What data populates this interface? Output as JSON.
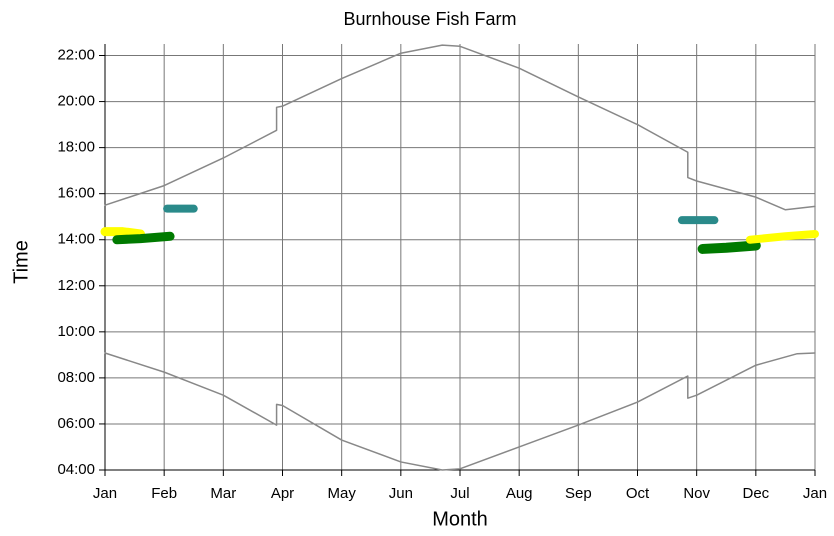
{
  "chart_data": {
    "type": "line",
    "title": "Burnhouse Fish Farm",
    "x_label": "Month",
    "y_label": "Time",
    "xlim": [
      0,
      12
    ],
    "xticks": [
      {
        "value": 0,
        "label": "Jan"
      },
      {
        "value": 1,
        "label": "Feb"
      },
      {
        "value": 2,
        "label": "Mar"
      },
      {
        "value": 3,
        "label": "Apr"
      },
      {
        "value": 4,
        "label": "May"
      },
      {
        "value": 5,
        "label": "Jun"
      },
      {
        "value": 6,
        "label": "Jul"
      },
      {
        "value": 7,
        "label": "Aug"
      },
      {
        "value": 8,
        "label": "Sep"
      },
      {
        "value": 9,
        "label": "Oct"
      },
      {
        "value": 10,
        "label": "Nov"
      },
      {
        "value": 11,
        "label": "Dec"
      },
      {
        "value": 12,
        "label": "Jan"
      }
    ],
    "ylim": [
      4,
      22.5
    ],
    "yticks": [
      {
        "value": 4,
        "label": "04:00"
      },
      {
        "value": 6,
        "label": "06:00"
      },
      {
        "value": 8,
        "label": "08:00"
      },
      {
        "value": 10,
        "label": "10:00"
      },
      {
        "value": 12,
        "label": "12:00"
      },
      {
        "value": 14,
        "label": "14:00"
      },
      {
        "value": 16,
        "label": "16:00"
      },
      {
        "value": 18,
        "label": "18:00"
      },
      {
        "value": 20,
        "label": "20:00"
      },
      {
        "value": 22,
        "label": "22:00"
      }
    ],
    "grid": true,
    "series": [
      {
        "color": "#888888",
        "line_width": 1.5,
        "x": [
          0,
          1,
          2,
          2.9,
          2.9,
          3,
          4,
          5,
          5.7,
          6,
          7,
          8,
          9,
          9.85,
          9.85,
          10,
          11,
          11.7,
          12
        ],
        "values": [
          9.08,
          8.25,
          7.25,
          5.95,
          6.85,
          6.8,
          5.3,
          4.35,
          4.0,
          4.05,
          5.0,
          5.95,
          6.95,
          8.08,
          7.12,
          7.25,
          8.55,
          9.05,
          9.08
        ]
      },
      {
        "color": "#888888",
        "line_width": 1.5,
        "x": [
          0,
          1,
          2,
          2.9,
          2.9,
          3,
          4,
          5,
          5.7,
          6,
          7,
          8,
          9,
          9.85,
          9.85,
          10,
          11,
          11.5,
          12
        ],
        "values": [
          15.5,
          16.35,
          17.55,
          18.75,
          19.75,
          19.8,
          21.0,
          22.1,
          22.45,
          22.4,
          21.45,
          20.2,
          19.0,
          17.8,
          16.7,
          16.55,
          15.85,
          15.3,
          15.45
        ]
      },
      {
        "color": "#ffff00",
        "line_width": 9,
        "x": [
          0,
          0.3,
          0.6
        ],
        "values": [
          14.35,
          14.35,
          14.25
        ]
      },
      {
        "color": "#007a00",
        "line_width": 9,
        "x": [
          0.2,
          0.6,
          1.1
        ],
        "values": [
          14.0,
          14.05,
          14.15
        ]
      },
      {
        "color": "#2a8a8a",
        "line_width": 8,
        "x": [
          1.05,
          1.5
        ],
        "values": [
          15.35,
          15.35
        ]
      },
      {
        "color": "#2a8a8a",
        "line_width": 8,
        "x": [
          9.75,
          10.3
        ],
        "values": [
          14.85,
          14.85
        ]
      },
      {
        "color": "#007a00",
        "line_width": 10,
        "x": [
          10.1,
          10.5,
          11.0
        ],
        "values": [
          13.6,
          13.65,
          13.75
        ]
      },
      {
        "color": "#ffff00",
        "line_width": 8,
        "x": [
          10.9,
          11.5,
          12
        ],
        "values": [
          14.0,
          14.15,
          14.25
        ]
      }
    ]
  }
}
